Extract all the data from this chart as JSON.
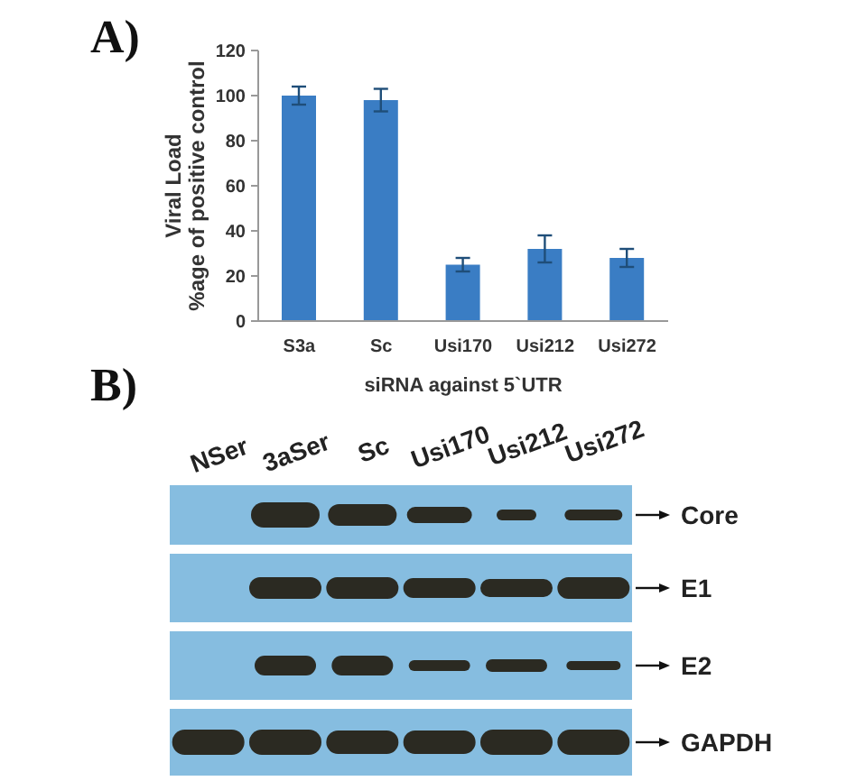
{
  "chart_data": [
    {
      "type": "bar",
      "title": "A)",
      "xlabel": "siRNA against 5`UTR",
      "ylabel": "Viral Load\n%age of positive control",
      "categories": [
        "S3a",
        "Sc",
        "Usi170",
        "Usi212",
        "Usi272"
      ],
      "values": [
        100,
        98,
        25,
        32,
        28
      ],
      "errors": [
        4,
        5,
        3,
        6,
        4
      ],
      "color": "#3a7dc4",
      "ylim": [
        0,
        120
      ],
      "yticks": [
        0,
        20,
        40,
        60,
        80,
        100,
        120
      ]
    },
    {
      "type": "other",
      "title": "B)",
      "categories": [
        "NSer",
        "3aSer",
        "Sc",
        "Usi170",
        "Usi212",
        "Usi272"
      ],
      "annotations": [
        "Core",
        "E1",
        "E2",
        "GAPDH"
      ]
    }
  ]
}
